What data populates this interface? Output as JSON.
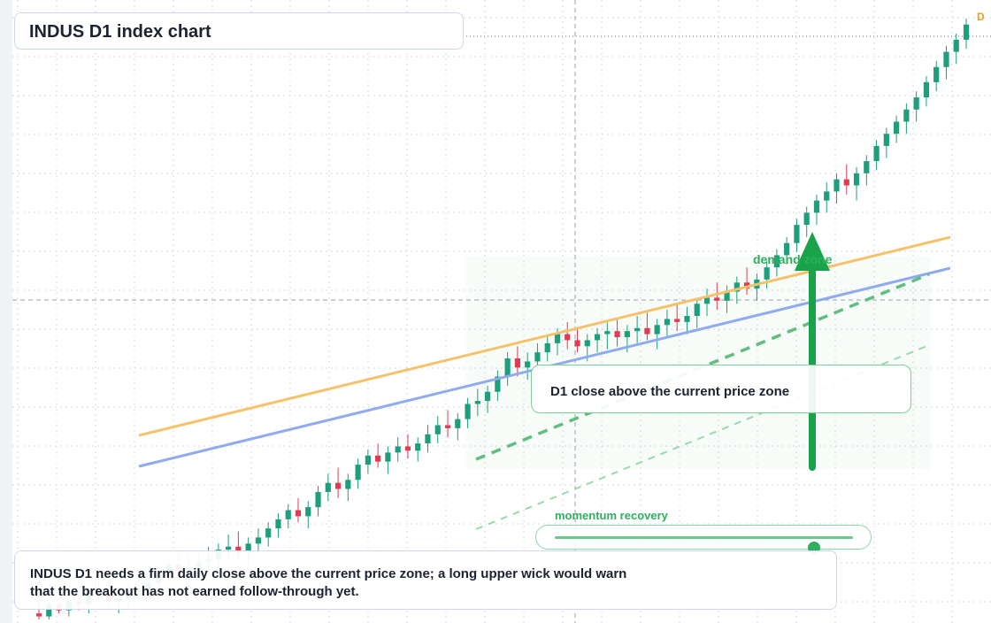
{
  "title": "INDUS D1 index chart",
  "callout_text": "D1 close above the current price zone",
  "zone_label": "demand zone",
  "momentum": {
    "label": "momentum recovery",
    "level": 0.87
  },
  "note": "INDUS D1 needs a firm daily close above the current price zone; a long upper wick would warn that the breakout has not earned follow-through yet.",
  "price_tag": "D",
  "colors": {
    "up": "#1e9e7c",
    "down": "#e03b52",
    "trend_orange": "#f5c26b",
    "trend_blue": "#8faaee",
    "accent_green": "#2fae5e",
    "grid": "#d8dbe2"
  },
  "chart_data": {
    "type": "candlestick",
    "title": "",
    "xlabel": "",
    "ylabel": "",
    "grid": true,
    "ylim": [
      0,
      1000
    ],
    "candles": [
      {
        "o": 10,
        "h": 30,
        "l": 0,
        "c": 5
      },
      {
        "o": 5,
        "h": 30,
        "l": 0,
        "c": 25
      },
      {
        "o": 25,
        "h": 40,
        "l": 10,
        "c": 15
      },
      {
        "o": 15,
        "h": 40,
        "l": 5,
        "c": 30
      },
      {
        "o": 30,
        "h": 55,
        "l": 15,
        "c": 25
      },
      {
        "o": 25,
        "h": 50,
        "l": 10,
        "c": 45
      },
      {
        "o": 45,
        "h": 70,
        "l": 30,
        "c": 40
      },
      {
        "o": 40,
        "h": 60,
        "l": 20,
        "c": 30
      },
      {
        "o": 30,
        "h": 55,
        "l": 10,
        "c": 35
      },
      {
        "o": 35,
        "h": 60,
        "l": 20,
        "c": 45
      },
      {
        "o": 45,
        "h": 70,
        "l": 30,
        "c": 50
      },
      {
        "o": 50,
        "h": 75,
        "l": 35,
        "c": 60
      },
      {
        "o": 60,
        "h": 80,
        "l": 45,
        "c": 75
      },
      {
        "o": 75,
        "h": 100,
        "l": 60,
        "c": 90
      },
      {
        "o": 90,
        "h": 110,
        "l": 70,
        "c": 80
      },
      {
        "o": 80,
        "h": 105,
        "l": 60,
        "c": 85
      },
      {
        "o": 85,
        "h": 110,
        "l": 70,
        "c": 95
      },
      {
        "o": 95,
        "h": 120,
        "l": 80,
        "c": 100
      },
      {
        "o": 100,
        "h": 125,
        "l": 85,
        "c": 115
      },
      {
        "o": 115,
        "h": 140,
        "l": 100,
        "c": 120
      },
      {
        "o": 120,
        "h": 145,
        "l": 100,
        "c": 110
      },
      {
        "o": 110,
        "h": 135,
        "l": 90,
        "c": 125
      },
      {
        "o": 125,
        "h": 150,
        "l": 110,
        "c": 135
      },
      {
        "o": 135,
        "h": 160,
        "l": 120,
        "c": 150
      },
      {
        "o": 150,
        "h": 175,
        "l": 135,
        "c": 165
      },
      {
        "o": 165,
        "h": 190,
        "l": 150,
        "c": 180
      },
      {
        "o": 180,
        "h": 200,
        "l": 160,
        "c": 170
      },
      {
        "o": 170,
        "h": 195,
        "l": 150,
        "c": 185
      },
      {
        "o": 185,
        "h": 220,
        "l": 170,
        "c": 210
      },
      {
        "o": 210,
        "h": 240,
        "l": 195,
        "c": 225
      },
      {
        "o": 225,
        "h": 250,
        "l": 200,
        "c": 215
      },
      {
        "o": 215,
        "h": 240,
        "l": 195,
        "c": 230
      },
      {
        "o": 230,
        "h": 265,
        "l": 215,
        "c": 255
      },
      {
        "o": 255,
        "h": 280,
        "l": 240,
        "c": 270
      },
      {
        "o": 270,
        "h": 290,
        "l": 250,
        "c": 260
      },
      {
        "o": 260,
        "h": 285,
        "l": 240,
        "c": 275
      },
      {
        "o": 275,
        "h": 300,
        "l": 260,
        "c": 285
      },
      {
        "o": 285,
        "h": 305,
        "l": 265,
        "c": 278
      },
      {
        "o": 278,
        "h": 300,
        "l": 260,
        "c": 290
      },
      {
        "o": 290,
        "h": 320,
        "l": 275,
        "c": 305
      },
      {
        "o": 305,
        "h": 335,
        "l": 290,
        "c": 320
      },
      {
        "o": 320,
        "h": 345,
        "l": 300,
        "c": 315
      },
      {
        "o": 315,
        "h": 340,
        "l": 295,
        "c": 330
      },
      {
        "o": 330,
        "h": 365,
        "l": 315,
        "c": 355
      },
      {
        "o": 355,
        "h": 380,
        "l": 335,
        "c": 360
      },
      {
        "o": 360,
        "h": 385,
        "l": 340,
        "c": 375
      },
      {
        "o": 375,
        "h": 410,
        "l": 360,
        "c": 400
      },
      {
        "o": 400,
        "h": 440,
        "l": 385,
        "c": 430
      },
      {
        "o": 430,
        "h": 450,
        "l": 400,
        "c": 415
      },
      {
        "o": 415,
        "h": 440,
        "l": 395,
        "c": 425
      },
      {
        "o": 425,
        "h": 455,
        "l": 410,
        "c": 440
      },
      {
        "o": 440,
        "h": 470,
        "l": 425,
        "c": 455
      },
      {
        "o": 455,
        "h": 480,
        "l": 435,
        "c": 470
      },
      {
        "o": 470,
        "h": 490,
        "l": 445,
        "c": 460
      },
      {
        "o": 460,
        "h": 480,
        "l": 440,
        "c": 450
      },
      {
        "o": 450,
        "h": 470,
        "l": 425,
        "c": 460
      },
      {
        "o": 460,
        "h": 480,
        "l": 440,
        "c": 470
      },
      {
        "o": 470,
        "h": 490,
        "l": 445,
        "c": 475
      },
      {
        "o": 475,
        "h": 495,
        "l": 450,
        "c": 465
      },
      {
        "o": 465,
        "h": 485,
        "l": 440,
        "c": 475
      },
      {
        "o": 475,
        "h": 500,
        "l": 455,
        "c": 480
      },
      {
        "o": 480,
        "h": 505,
        "l": 460,
        "c": 470
      },
      {
        "o": 470,
        "h": 495,
        "l": 445,
        "c": 485
      },
      {
        "o": 485,
        "h": 510,
        "l": 465,
        "c": 495
      },
      {
        "o": 495,
        "h": 520,
        "l": 475,
        "c": 490
      },
      {
        "o": 490,
        "h": 515,
        "l": 470,
        "c": 500
      },
      {
        "o": 500,
        "h": 530,
        "l": 480,
        "c": 520
      },
      {
        "o": 520,
        "h": 545,
        "l": 500,
        "c": 530
      },
      {
        "o": 530,
        "h": 555,
        "l": 510,
        "c": 525
      },
      {
        "o": 525,
        "h": 550,
        "l": 505,
        "c": 540
      },
      {
        "o": 540,
        "h": 565,
        "l": 520,
        "c": 555
      },
      {
        "o": 555,
        "h": 580,
        "l": 535,
        "c": 545
      },
      {
        "o": 545,
        "h": 570,
        "l": 525,
        "c": 560
      },
      {
        "o": 560,
        "h": 590,
        "l": 545,
        "c": 580
      },
      {
        "o": 580,
        "h": 610,
        "l": 565,
        "c": 600
      },
      {
        "o": 600,
        "h": 630,
        "l": 585,
        "c": 620
      },
      {
        "o": 620,
        "h": 660,
        "l": 605,
        "c": 650
      },
      {
        "o": 650,
        "h": 680,
        "l": 630,
        "c": 670
      },
      {
        "o": 670,
        "h": 700,
        "l": 650,
        "c": 690
      },
      {
        "o": 690,
        "h": 720,
        "l": 670,
        "c": 705
      },
      {
        "o": 705,
        "h": 735,
        "l": 685,
        "c": 725
      },
      {
        "o": 725,
        "h": 750,
        "l": 700,
        "c": 715
      },
      {
        "o": 715,
        "h": 745,
        "l": 690,
        "c": 735
      },
      {
        "o": 735,
        "h": 765,
        "l": 715,
        "c": 755
      },
      {
        "o": 755,
        "h": 790,
        "l": 740,
        "c": 780
      },
      {
        "o": 780,
        "h": 810,
        "l": 760,
        "c": 800
      },
      {
        "o": 800,
        "h": 830,
        "l": 785,
        "c": 820
      },
      {
        "o": 820,
        "h": 850,
        "l": 800,
        "c": 840
      },
      {
        "o": 840,
        "h": 870,
        "l": 820,
        "c": 860
      },
      {
        "o": 860,
        "h": 895,
        "l": 845,
        "c": 885
      },
      {
        "o": 885,
        "h": 920,
        "l": 870,
        "c": 910
      },
      {
        "o": 910,
        "h": 945,
        "l": 890,
        "c": 935
      },
      {
        "o": 935,
        "h": 965,
        "l": 915,
        "c": 955
      },
      {
        "o": 955,
        "h": 990,
        "l": 940,
        "c": 980
      }
    ]
  }
}
